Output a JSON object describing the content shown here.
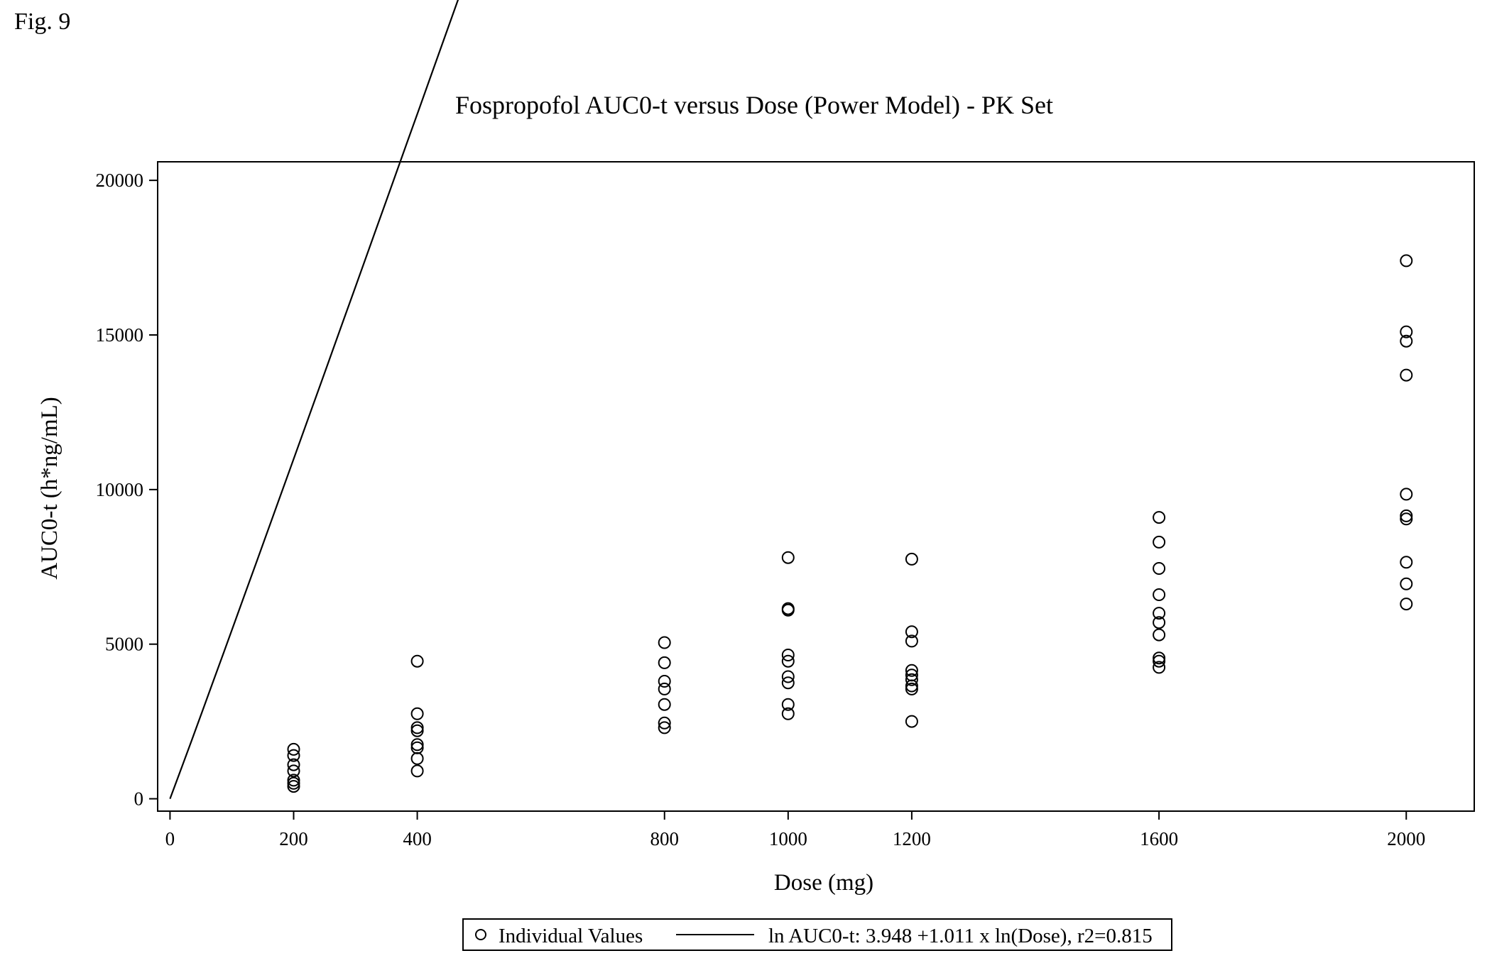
{
  "figure_label": "Fig. 9",
  "chart_data": {
    "type": "scatter",
    "title": "Fospropofol AUC0-t versus Dose (Power Model) - PK Set",
    "xlabel": "Dose (mg)",
    "ylabel": "AUC0-t (h*ng/mL)",
    "xlim": [
      -20,
      2110
    ],
    "ylim": [
      -400,
      20600
    ],
    "x_ticks": [
      0,
      200,
      400,
      800,
      1000,
      1200,
      1600,
      2000
    ],
    "y_ticks": [
      0,
      5000,
      10000,
      15000,
      20000
    ],
    "grid": false,
    "legend_position": "bottom",
    "series": [
      {
        "name": "Individual Values",
        "marker": "open-circle",
        "points": [
          [
            200,
            1600
          ],
          [
            200,
            1400
          ],
          [
            200,
            1100
          ],
          [
            200,
            900
          ],
          [
            200,
            600
          ],
          [
            200,
            500
          ],
          [
            200,
            400
          ],
          [
            400,
            4450
          ],
          [
            400,
            2750
          ],
          [
            400,
            2300
          ],
          [
            400,
            2200
          ],
          [
            400,
            1750
          ],
          [
            400,
            1650
          ],
          [
            400,
            1300
          ],
          [
            400,
            900
          ],
          [
            800,
            5050
          ],
          [
            800,
            4400
          ],
          [
            800,
            3800
          ],
          [
            800,
            3550
          ],
          [
            800,
            3050
          ],
          [
            800,
            2450
          ],
          [
            800,
            2300
          ],
          [
            1000,
            7800
          ],
          [
            1000,
            6150
          ],
          [
            1000,
            6100
          ],
          [
            1000,
            4650
          ],
          [
            1000,
            4450
          ],
          [
            1000,
            3950
          ],
          [
            1000,
            3750
          ],
          [
            1000,
            3050
          ],
          [
            1000,
            2750
          ],
          [
            1200,
            7750
          ],
          [
            1200,
            5400
          ],
          [
            1200,
            5100
          ],
          [
            1200,
            4150
          ],
          [
            1200,
            4000
          ],
          [
            1200,
            3850
          ],
          [
            1200,
            3650
          ],
          [
            1200,
            3550
          ],
          [
            1200,
            2500
          ],
          [
            1600,
            9100
          ],
          [
            1600,
            8300
          ],
          [
            1600,
            7450
          ],
          [
            1600,
            6600
          ],
          [
            1600,
            6000
          ],
          [
            1600,
            5700
          ],
          [
            1600,
            5300
          ],
          [
            1600,
            4550
          ],
          [
            1600,
            4450
          ],
          [
            1600,
            4250
          ],
          [
            2000,
            17400
          ],
          [
            2000,
            15100
          ],
          [
            2000,
            14800
          ],
          [
            2000,
            13700
          ],
          [
            2000,
            9850
          ],
          [
            2000,
            9150
          ],
          [
            2000,
            9050
          ],
          [
            2000,
            7650
          ],
          [
            2000,
            6950
          ],
          [
            2000,
            6300
          ]
        ]
      },
      {
        "name": "ln AUC0-t: 3.948 +1.011 x ln(Dose), r2=0.815",
        "type": "line",
        "model": {
          "intercept": 3.948,
          "slope": 1.011
        },
        "x_range": [
          0,
          2100
        ]
      }
    ]
  }
}
